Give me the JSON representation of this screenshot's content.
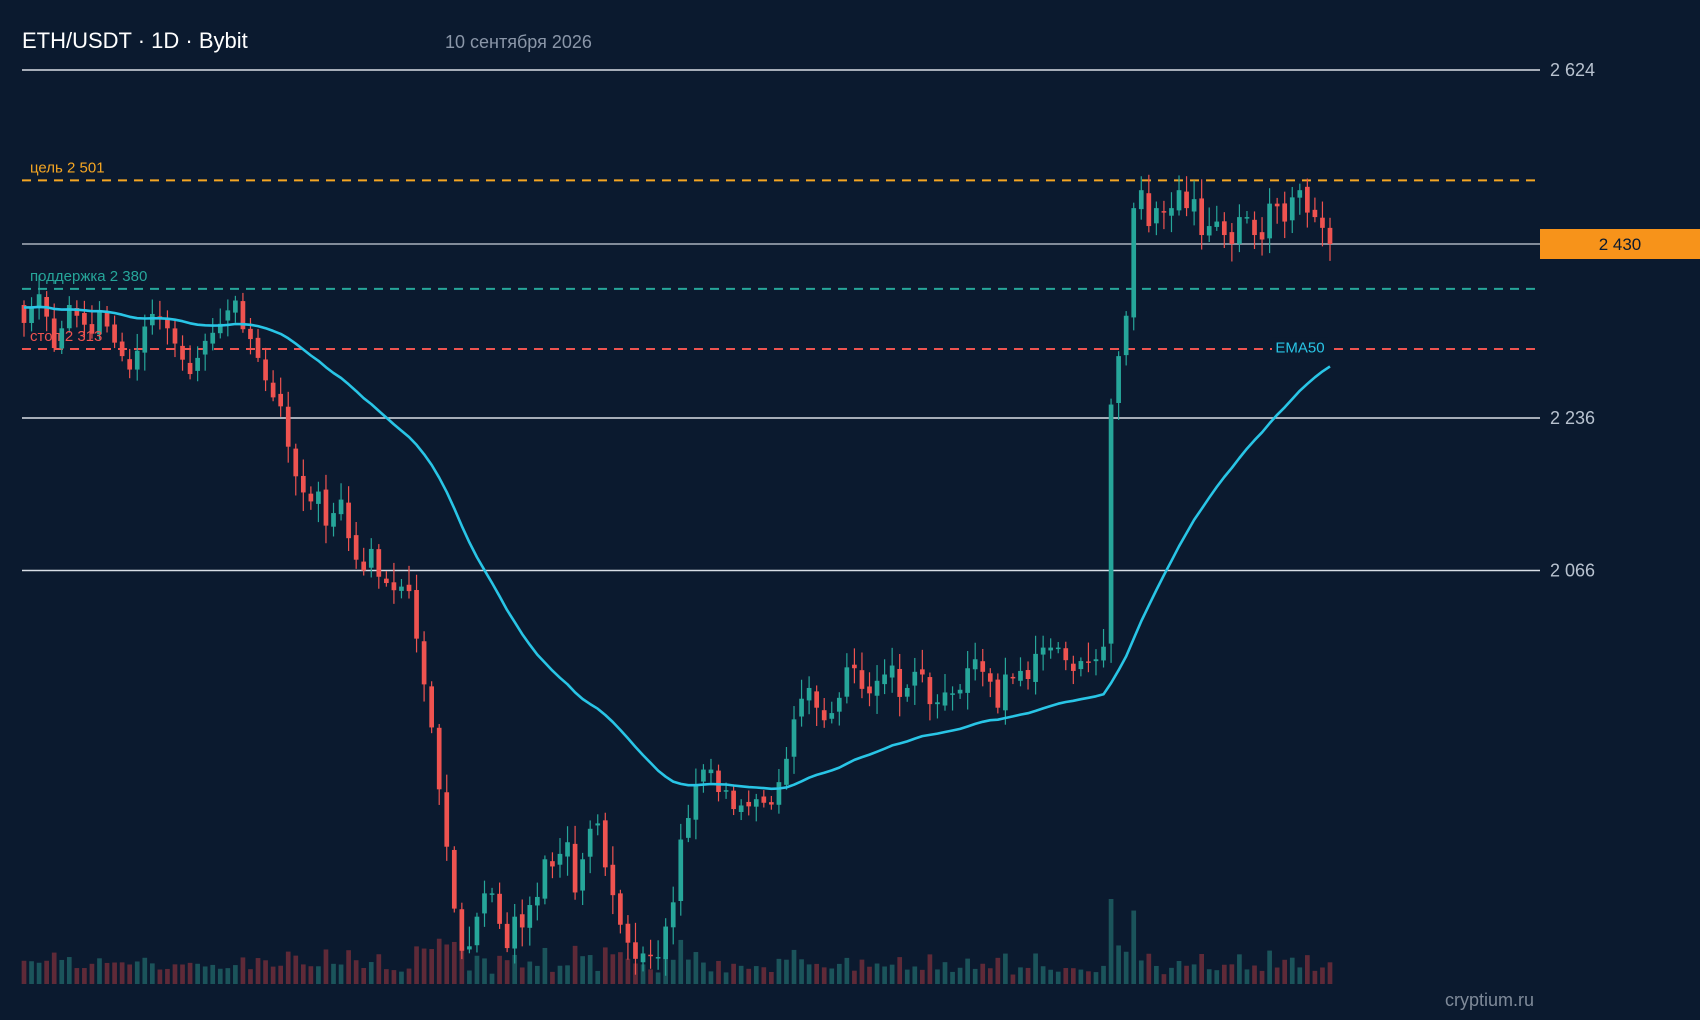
{
  "header": {
    "title": "ETH/USDT · 1D · Bybit",
    "date": "10 сентября 2026"
  },
  "watermark": "cryptium.ru",
  "colors": {
    "background": "#0b1a2f",
    "bull": "#26a69a",
    "bear": "#ef5350",
    "ema": "#29c5e6",
    "target": "#f5a623",
    "support": "#26a69a",
    "stop": "#ef5350",
    "price_tag": "#f7931a",
    "level": "#d9dee6"
  },
  "chart_data": {
    "type": "candlestick",
    "y_axis_ticks": [
      "2 624",
      "2 236",
      "2 066"
    ],
    "y_axis_values": [
      2624,
      2236,
      2066
    ],
    "current_price": {
      "value": 2430,
      "label": "2 430"
    },
    "levels": [
      {
        "name": "target",
        "label": "цель 2 501",
        "value": 2501,
        "style": "dashed"
      },
      {
        "name": "support",
        "label": "поддержка 2 380",
        "value": 2380,
        "style": "dashed"
      },
      {
        "name": "stop",
        "label": "стоп 2 313",
        "value": 2313,
        "style": "dashed"
      }
    ],
    "indicator": {
      "label": "EMA50"
    },
    "close": [
      2342,
      2360,
      2374,
      2349,
      2314,
      2336,
      2362,
      2350,
      2340,
      2330,
      2356,
      2338,
      2320,
      2305,
      2290,
      2311,
      2338,
      2352,
      2347,
      2336,
      2319,
      2301,
      2285,
      2303,
      2322,
      2331,
      2341,
      2356,
      2367,
      2335,
      2324,
      2303,
      2278,
      2259,
      2249,
      2204,
      2171,
      2153,
      2143,
      2154,
      2116,
      2130,
      2145,
      2102,
      2078,
      2066,
      2090,
      2059,
      2052,
      2044,
      2048,
      2043,
      1990,
      1939,
      1891,
      1822,
      1758,
      1689,
      1642,
      1647,
      1680,
      1706,
      1706,
      1672,
      1645,
      1680,
      1668,
      1693,
      1702,
      1744,
      1736,
      1750,
      1763,
      1707,
      1744,
      1778,
      1784,
      1735,
      1704,
      1671,
      1651,
      1633,
      1639,
      1636,
      1635,
      1669,
      1696,
      1766,
      1790,
      1827,
      1844,
      1844,
      1819,
      1821,
      1800,
      1804,
      1803,
      1811,
      1807,
      1805,
      1830,
      1856,
      1900,
      1923,
      1935,
      1913,
      1899,
      1907,
      1924,
      1958,
      1957,
      1934,
      1929,
      1943,
      1950,
      1960,
      1925,
      1935,
      1953,
      1950,
      1917,
      1919,
      1930,
      1929,
      1933,
      1957,
      1967,
      1953,
      1942,
      1913,
      1950,
      1947,
      1954,
      1945,
      1973,
      1980,
      1980,
      1980,
      1966,
      1954,
      1965,
      1963,
      1967,
      1981,
      2251,
      2305,
      2350,
      2470,
      2490,
      2450,
      2470,
      2465,
      2470,
      2490,
      2470,
      2480,
      2440,
      2450,
      2455,
      2440,
      2430,
      2460,
      2460,
      2440,
      2435,
      2475,
      2472,
      2455,
      2482,
      2490,
      2465,
      2460,
      2448,
      2430
    ]
  }
}
